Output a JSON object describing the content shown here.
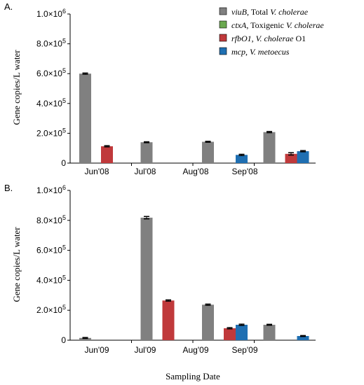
{
  "chart_data": [
    {
      "type": "bar",
      "panel_label": "A.",
      "ylabel": "Gene copies/L water",
      "categories": [
        "Jun'08",
        "Jul'08",
        "Aug'08",
        "Sep'08"
      ],
      "ylim": [
        0,
        1000000
      ],
      "y_ticks": [
        {
          "value": 0,
          "base": "0",
          "exp": ""
        },
        {
          "value": 200000,
          "base": "2.0×10",
          "exp": "5"
        },
        {
          "value": 400000,
          "base": "4.0×10",
          "exp": "5"
        },
        {
          "value": 600000,
          "base": "6.0×10",
          "exp": "5"
        },
        {
          "value": 800000,
          "base": "8.0×10",
          "exp": "5"
        },
        {
          "value": 1000000,
          "base": "1.0×10",
          "exp": "6"
        }
      ],
      "grid": false,
      "legend_position": "top-right",
      "series": [
        {
          "name": "viuB, Total V. cholerae",
          "color": "#808080",
          "values": [
            600000,
            140000,
            143000,
            208000
          ],
          "errors": [
            4000,
            3000,
            3000,
            4000
          ]
        },
        {
          "name": "ctxA, Toxigenic V. cholerae",
          "color": "#6aa84f",
          "values": [
            0,
            0,
            0,
            0
          ],
          "errors": [
            0,
            0,
            0,
            0
          ]
        },
        {
          "name": "rfbO1, V. cholerae O1",
          "color": "#c0393b",
          "values": [
            113000,
            0,
            0,
            62000
          ],
          "errors": [
            4000,
            0,
            0,
            8000
          ]
        },
        {
          "name": "mcp, V. metoecus",
          "color": "#1f6fb2",
          "values": [
            0,
            0,
            55000,
            80000
          ],
          "errors": [
            0,
            0,
            4000,
            4000
          ]
        }
      ]
    },
    {
      "type": "bar",
      "panel_label": "B.",
      "ylabel": "Gene copies/L water",
      "xlabel": "Sampling Date",
      "categories": [
        "Jun'09",
        "Jul'09",
        "Aug'09",
        "Sep'09"
      ],
      "ylim": [
        0,
        1000000
      ],
      "y_ticks": [
        {
          "value": 0,
          "base": "0",
          "exp": ""
        },
        {
          "value": 200000,
          "base": "2.0×10",
          "exp": "5"
        },
        {
          "value": 400000,
          "base": "4.0×10",
          "exp": "5"
        },
        {
          "value": 600000,
          "base": "6.0×10",
          "exp": "5"
        },
        {
          "value": 800000,
          "base": "8.0×10",
          "exp": "5"
        },
        {
          "value": 1000000,
          "base": "1.0×10",
          "exp": "6"
        }
      ],
      "grid": false,
      "series": [
        {
          "name": "viuB, Total V. cholerae",
          "color": "#808080",
          "values": [
            15000,
            818000,
            237000,
            103000
          ],
          "errors": [
            3000,
            8000,
            4000,
            3000
          ]
        },
        {
          "name": "ctxA, Toxigenic V. cholerae",
          "color": "#6aa84f",
          "values": [
            0,
            0,
            0,
            0
          ],
          "errors": [
            0,
            0,
            0,
            0
          ]
        },
        {
          "name": "rfbO1, V. cholerae O1",
          "color": "#c0393b",
          "values": [
            0,
            265000,
            80000,
            0
          ],
          "errors": [
            0,
            4000,
            4000,
            0
          ]
        },
        {
          "name": "mcp, V. metoecus",
          "color": "#1f6fb2",
          "values": [
            0,
            0,
            103000,
            28000
          ],
          "errors": [
            0,
            0,
            4000,
            3000
          ]
        }
      ]
    }
  ],
  "legend": [
    {
      "gene": "viuB",
      "sep": ",",
      "gap": "   ",
      "plain": "Total ",
      "italic": "V. cholerae",
      "tail": "",
      "color": "#808080"
    },
    {
      "gene": "ctxA",
      "sep": ",",
      "gap": "   ",
      "plain": "Toxigenic ",
      "italic": "V. cholerae",
      "tail": "",
      "color": "#6aa84f"
    },
    {
      "gene": "rfbO1",
      "sep": ",",
      "gap": " ",
      "plain": "",
      "italic": "V. cholerae",
      "tail": " O1",
      "color": "#c0393b"
    },
    {
      "gene": "mcp",
      "sep": ",",
      "gap": "     ",
      "plain": "",
      "italic": "V. metoecus",
      "tail": "",
      "color": "#1f6fb2"
    }
  ]
}
